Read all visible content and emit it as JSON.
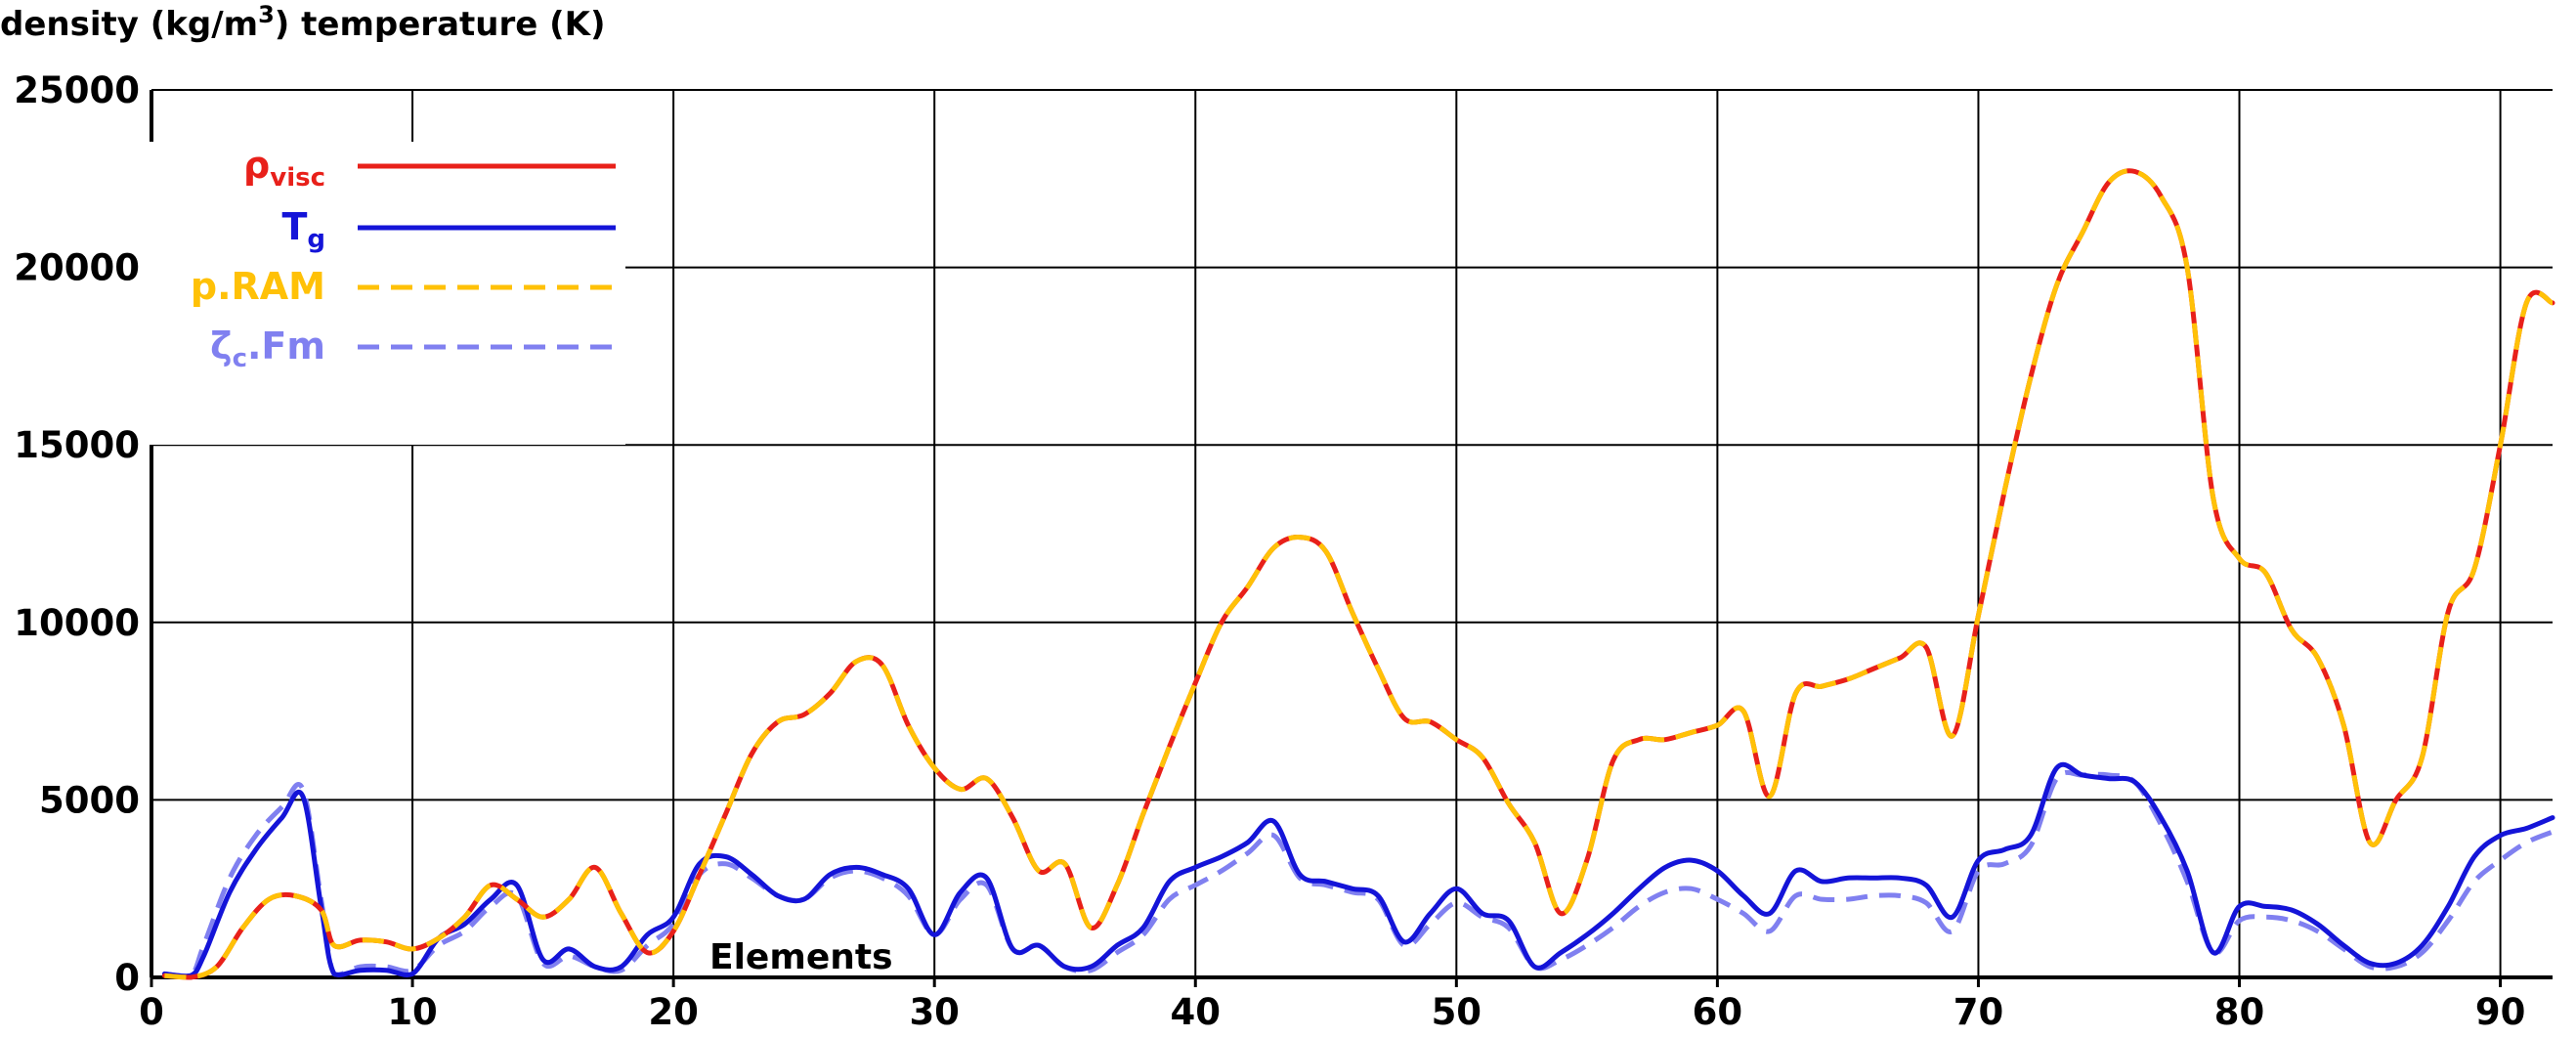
{
  "chart_data": {
    "type": "line",
    "title": "",
    "ylabel": "density (kg/m3) temperature (K)",
    "ylabel_parts": {
      "before": "density (kg/m",
      "superscript": "3",
      "after": ") temperature (K)"
    },
    "xlabel": "Elements",
    "xlim": [
      0,
      92
    ],
    "ylim": [
      0,
      25000
    ],
    "x_ticks": [
      "0",
      "10",
      "20",
      "30",
      "40",
      "50",
      "60",
      "70",
      "80",
      "90"
    ],
    "y_ticks": [
      "0",
      "5000",
      "10000",
      "15000",
      "20000",
      "25000"
    ],
    "grid": true,
    "legend_position": "top-left",
    "series": [
      {
        "name": "ρvisc",
        "name_main": "ρ",
        "name_sub": "visc",
        "color": "#e8201a",
        "style": "solid",
        "x": [
          0.5,
          1.5,
          2.5,
          3.5,
          4.5,
          5.5,
          6.5,
          7,
          8,
          9,
          10,
          11,
          12,
          13,
          14,
          15,
          16,
          17,
          18,
          19,
          20,
          21,
          22,
          23,
          24,
          25,
          26,
          27,
          28,
          29,
          30,
          31,
          32,
          33,
          34,
          35,
          36,
          37,
          38,
          39,
          40,
          41,
          42,
          43,
          44,
          45,
          46,
          47,
          48,
          49,
          50,
          51,
          52,
          53,
          54,
          55,
          56,
          57,
          58,
          59,
          60,
          61,
          62,
          63,
          64,
          65,
          66,
          67,
          68,
          69,
          70,
          71,
          72,
          73,
          74,
          75,
          76,
          77,
          78,
          79,
          80,
          81,
          82,
          83,
          84,
          85,
          86,
          87,
          88,
          89,
          90,
          91,
          92
        ],
        "y": [
          50,
          0,
          300,
          1400,
          2200,
          2300,
          1900,
          900,
          1050,
          1000,
          800,
          1100,
          1700,
          2600,
          2200,
          1700,
          2200,
          3100,
          1800,
          700,
          1300,
          2900,
          4600,
          6300,
          7200,
          7400,
          8000,
          8900,
          8800,
          7100,
          5900,
          5300,
          5600,
          4500,
          3000,
          3200,
          1400,
          2600,
          4600,
          6500,
          8300,
          10000,
          11000,
          12100,
          12400,
          12000,
          10300,
          8700,
          7300,
          7200,
          6700,
          6200,
          4900,
          3800,
          1800,
          3300,
          6100,
          6700,
          6700,
          6900,
          7100,
          7500,
          5100,
          8000,
          8200,
          8400,
          8700,
          9000,
          9300,
          6800,
          10200,
          13700,
          16900,
          19500,
          21000,
          22400,
          22700,
          22000,
          20000,
          13500,
          11800,
          11400,
          9800,
          9000,
          7100,
          3800,
          5000,
          6200,
          10300,
          11500,
          15000,
          19000,
          19000
        ]
      },
      {
        "name": "Tg",
        "name_main": "T",
        "name_sub": "g",
        "color": "#1414d8",
        "style": "solid",
        "x": [
          0.5,
          1.5,
          2,
          3,
          4,
          5,
          5.8,
          6.5,
          7,
          8,
          9,
          10,
          11,
          12,
          13,
          14,
          15,
          16,
          17,
          18,
          19,
          20,
          21,
          22,
          23,
          24,
          25,
          26,
          27,
          28,
          29,
          30,
          31,
          32,
          33,
          34,
          35,
          36,
          37,
          38,
          39,
          40,
          41,
          42,
          43,
          44,
          45,
          46,
          47,
          48,
          49,
          50,
          51,
          52,
          53,
          54,
          55,
          56,
          57,
          58,
          59,
          60,
          61,
          62,
          63,
          64,
          65,
          66,
          67,
          68,
          69,
          70,
          71,
          72,
          73,
          74,
          75,
          76,
          77,
          78,
          79,
          80,
          81,
          82,
          83,
          84,
          85,
          86,
          87,
          88,
          89,
          90,
          91,
          92
        ],
        "y": [
          100,
          50,
          600,
          2400,
          3600,
          4500,
          5100,
          2000,
          100,
          200,
          200,
          100,
          1100,
          1500,
          2200,
          2600,
          500,
          800,
          300,
          300,
          1200,
          1700,
          3200,
          3400,
          2900,
          2300,
          2200,
          2900,
          3100,
          2900,
          2500,
          1200,
          2400,
          2800,
          800,
          900,
          300,
          300,
          900,
          1400,
          2700,
          3100,
          3400,
          3800,
          4400,
          2900,
          2700,
          2500,
          2300,
          1000,
          1800,
          2500,
          1800,
          1600,
          300,
          700,
          1200,
          1800,
          2500,
          3100,
          3300,
          3000,
          2300,
          1800,
          3000,
          2700,
          2800,
          2800,
          2800,
          2600,
          1700,
          3300,
          3600,
          4000,
          5900,
          5700,
          5600,
          5500,
          4500,
          3000,
          700,
          2000,
          2000,
          1900,
          1500,
          900,
          400,
          400,
          900,
          2000,
          3400,
          4000,
          4200,
          4500
        ]
      },
      {
        "name": "p.RAM",
        "name_main": "p.RAM",
        "name_sub": "",
        "color": "#ffc107",
        "style": "dashed",
        "same_as": 0
      },
      {
        "name": "ζc.Fm",
        "name_main": "ζ",
        "name_sub": "c",
        "name_rest": ".Fm",
        "color": "#8080f0",
        "style": "dashed",
        "x": [
          0.5,
          1.5,
          2,
          3,
          4,
          5,
          5.8,
          6.5,
          7,
          8,
          9,
          10,
          11,
          12,
          13,
          14,
          15,
          16,
          17,
          18,
          19,
          20,
          21,
          22,
          23,
          24,
          25,
          26,
          27,
          28,
          29,
          30,
          31,
          32,
          33,
          34,
          35,
          36,
          37,
          38,
          39,
          40,
          41,
          42,
          43,
          44,
          45,
          46,
          47,
          48,
          49,
          50,
          51,
          52,
          53,
          54,
          55,
          56,
          57,
          58,
          59,
          60,
          61,
          62,
          63,
          64,
          65,
          66,
          67,
          68,
          69,
          70,
          71,
          72,
          73,
          74,
          75,
          76,
          77,
          78,
          79,
          80,
          81,
          82,
          83,
          84,
          85,
          86,
          87,
          88,
          89,
          90,
          91,
          92
        ],
        "y": [
          100,
          50,
          900,
          2800,
          4000,
          4800,
          5300,
          2200,
          100,
          300,
          300,
          200,
          900,
          1300,
          2000,
          2300,
          400,
          600,
          300,
          200,
          900,
          1500,
          2900,
          3200,
          2800,
          2300,
          2200,
          2800,
          3000,
          2800,
          2300,
          1200,
          2200,
          2600,
          800,
          900,
          300,
          200,
          700,
          1200,
          2200,
          2600,
          3000,
          3500,
          4000,
          2800,
          2600,
          2400,
          2200,
          900,
          1500,
          2100,
          1700,
          1400,
          300,
          500,
          900,
          1400,
          2000,
          2400,
          2500,
          2200,
          1800,
          1300,
          2300,
          2200,
          2200,
          2300,
          2300,
          2100,
          1300,
          3000,
          3200,
          3700,
          5600,
          5700,
          5700,
          5500,
          4300,
          2700,
          700,
          1600,
          1700,
          1600,
          1300,
          800,
          300,
          300,
          700,
          1600,
          2700,
          3300,
          3800,
          4100
        ]
      }
    ]
  }
}
